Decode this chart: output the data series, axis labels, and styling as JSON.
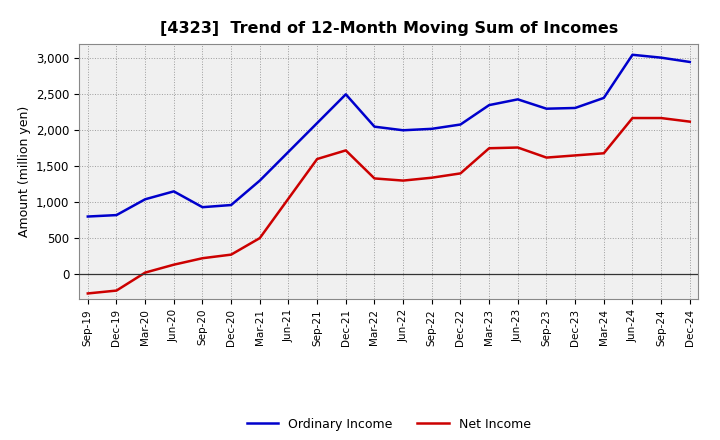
{
  "title": "[4323]  Trend of 12-Month Moving Sum of Incomes",
  "ylabel": "Amount (million yen)",
  "x_labels": [
    "Sep-19",
    "Dec-19",
    "Mar-20",
    "Jun-20",
    "Sep-20",
    "Dec-20",
    "Mar-21",
    "Jun-21",
    "Sep-21",
    "Dec-21",
    "Mar-22",
    "Jun-22",
    "Sep-22",
    "Dec-22",
    "Mar-23",
    "Jun-23",
    "Sep-23",
    "Dec-23",
    "Mar-24",
    "Jun-24",
    "Sep-24",
    "Dec-24"
  ],
  "ordinary_income": [
    800,
    820,
    1040,
    1150,
    930,
    960,
    1300,
    1700,
    2100,
    2500,
    2050,
    2000,
    2020,
    2080,
    2350,
    2430,
    2300,
    2310,
    2450,
    3050,
    3010,
    2950
  ],
  "net_income": [
    -270,
    -230,
    20,
    130,
    220,
    270,
    500,
    1050,
    1600,
    1720,
    1330,
    1300,
    1340,
    1400,
    1750,
    1760,
    1620,
    1650,
    1680,
    2170,
    2170,
    2120
  ],
  "ordinary_color": "#0000cc",
  "net_color": "#cc0000",
  "ylim_min": -350,
  "ylim_max": 3200,
  "yticks": [
    0,
    500,
    1000,
    1500,
    2000,
    2500,
    3000
  ],
  "background_color": "#ffffff",
  "plot_bg_color": "#f0f0f0",
  "grid_color": "#888888"
}
